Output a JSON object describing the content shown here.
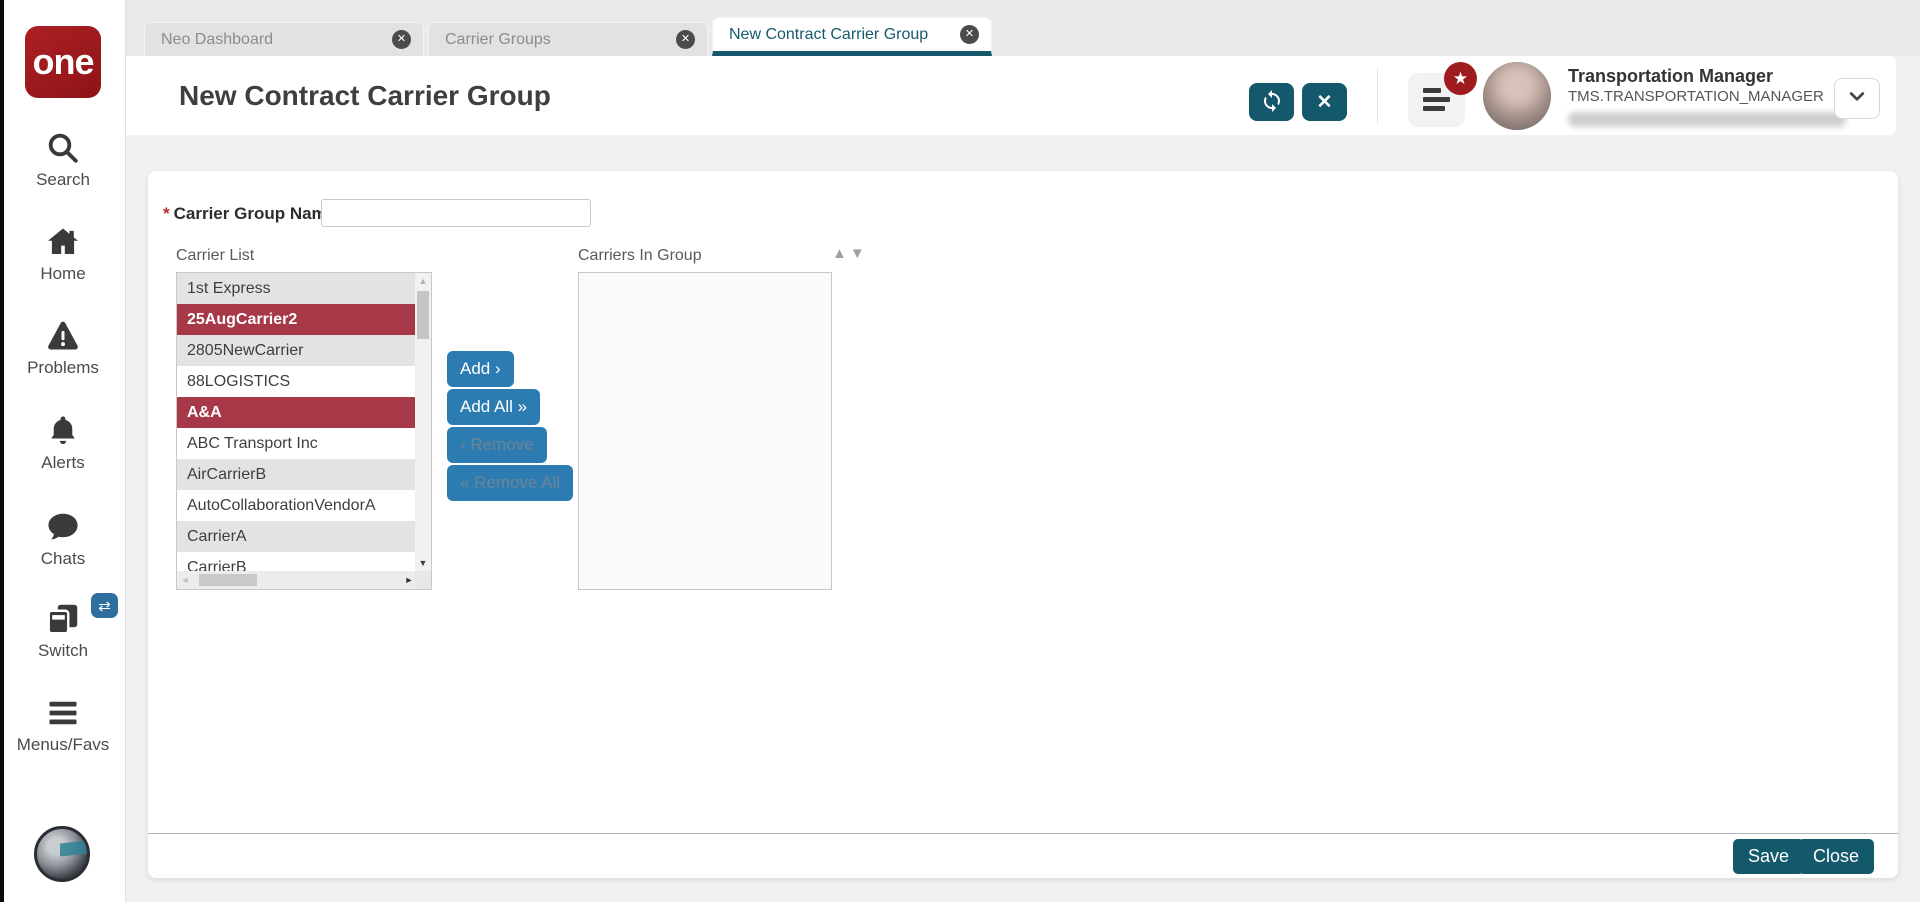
{
  "colors": {
    "accent_teal": "#14586c",
    "action_blue": "#2c7cb2",
    "selection_red": "#a73848",
    "brand_red": "#9e1b1e"
  },
  "sidebar": {
    "logo_text": "one",
    "items": [
      {
        "label": "Search",
        "icon": "search-icon"
      },
      {
        "label": "Home",
        "icon": "home-icon"
      },
      {
        "label": "Problems",
        "icon": "warning-triangle-icon"
      },
      {
        "label": "Alerts",
        "icon": "bell-icon"
      },
      {
        "label": "Chats",
        "icon": "chat-bubble-icon"
      },
      {
        "label": "Switch",
        "icon": "switch-windows-icon",
        "badge_icon": "swap-arrows-icon",
        "badge_glyph": "⇄"
      },
      {
        "label": "Menus/Favs",
        "icon": "hamburger-icon"
      }
    ]
  },
  "tabs": [
    {
      "label": "Neo Dashboard",
      "active": false
    },
    {
      "label": "Carrier Groups",
      "active": false
    },
    {
      "label": "New Contract Carrier Group",
      "active": true
    }
  ],
  "header": {
    "title": "New Contract Carrier Group",
    "close_glyph": "✕",
    "badge_glyph": "★",
    "user": {
      "role": "Transportation Manager",
      "role_id": "TMS.TRANSPORTATION_MANAGER"
    }
  },
  "form": {
    "required_marker": "*",
    "label": "Carrier Group Name:",
    "value": "",
    "left_list_label": "Carrier List",
    "right_list_label": "Carriers In Group",
    "sort_arrows": "▲▼"
  },
  "carrier_list": [
    {
      "name": "1st Express",
      "selected": false
    },
    {
      "name": "25AugCarrier2",
      "selected": true
    },
    {
      "name": "2805NewCarrier",
      "selected": false
    },
    {
      "name": "88LOGISTICS",
      "selected": false
    },
    {
      "name": "A&A",
      "selected": true
    },
    {
      "name": "ABC Transport Inc",
      "selected": false
    },
    {
      "name": "AirCarrierB",
      "selected": false
    },
    {
      "name": "AutoCollaborationVendorA",
      "selected": false
    },
    {
      "name": "CarrierA",
      "selected": false
    },
    {
      "name": "CarrierB",
      "selected": false
    }
  ],
  "carriers_in_group": [],
  "transfer_buttons": {
    "add": "Add ›",
    "add_all": "Add All »",
    "remove": "‹ Remove",
    "remove_all": "« Remove All",
    "remove_disabled": true,
    "remove_all_disabled": true
  },
  "scrollbar_glyphs": {
    "up": "▲",
    "down": "▼",
    "left": "◄",
    "right": "►"
  },
  "footer": {
    "save": "Save",
    "close": "Close"
  }
}
